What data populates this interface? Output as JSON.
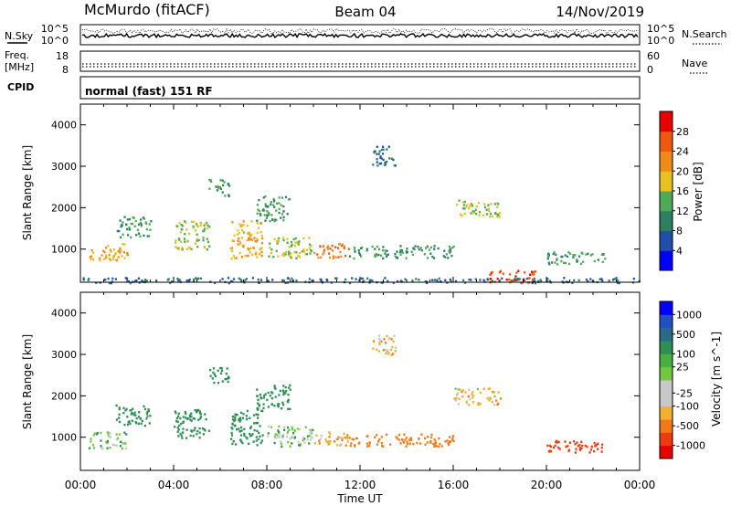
{
  "header": {
    "station": "McMurdo (fitACF)",
    "beam": "Beam 04",
    "date": "14/Nov/2019"
  },
  "noise_panel": {
    "left_label": "N.Sky",
    "left_ticks": [
      "10^5",
      "10^0"
    ],
    "right_label": "N.Search",
    "right_ticks": [
      "10^5",
      "10^0"
    ]
  },
  "freq_panel": {
    "left_label_1": "Freq.",
    "left_label_2": "[MHz]",
    "left_ticks": [
      "18",
      "8"
    ],
    "right_label": "Nave",
    "right_ticks": [
      "60",
      "0"
    ]
  },
  "cpid": {
    "label": "CPID",
    "value": "normal (fast) 151 RF"
  },
  "colors": {
    "power_scale": [
      "#0000ff",
      "#1f4fa8",
      "#2e7f62",
      "#4faa55",
      "#e8c020",
      "#f08a18",
      "#ec5a10",
      "#e80000"
    ],
    "velocity_scale": [
      "#e80000",
      "#ee3a10",
      "#f07a18",
      "#f2b030",
      "#c8c8c8",
      "#c8c8c8",
      "#70c840",
      "#48b040",
      "#2e8f55",
      "#2a6a88",
      "#2050c0",
      "#0000ff"
    ]
  },
  "chart_data": [
    {
      "type": "heatmap",
      "panel": "power",
      "ylabel": "Slant Range [km]",
      "yticks": [
        "1000",
        "2000",
        "3000",
        "4000"
      ],
      "ylim": [
        200,
        4500
      ],
      "xlim_hours": [
        0,
        24
      ],
      "colorbar_label": "Power [dB]",
      "colorbar_ticks": [
        "4",
        "8",
        "12",
        "16",
        "20",
        "24",
        "28"
      ],
      "color_range": [
        0,
        32
      ],
      "features": [
        {
          "t0": 0.0,
          "t1": 24.0,
          "r0": 200,
          "r1": 330,
          "value": 8
        },
        {
          "t0": 0.3,
          "t1": 2.0,
          "r0": 750,
          "r1": 1150,
          "value": 20
        },
        {
          "t0": 1.5,
          "t1": 3.0,
          "r0": 1300,
          "r1": 1800,
          "value": 12
        },
        {
          "t0": 4.0,
          "t1": 5.5,
          "r0": 1000,
          "r1": 1700,
          "value": 16
        },
        {
          "t0": 5.5,
          "t1": 6.4,
          "r0": 2300,
          "r1": 2700,
          "value": 12
        },
        {
          "t0": 6.4,
          "t1": 7.8,
          "r0": 800,
          "r1": 1700,
          "value": 20
        },
        {
          "t0": 7.5,
          "t1": 9.0,
          "r0": 1700,
          "r1": 2300,
          "value": 12
        },
        {
          "t0": 8.0,
          "t1": 10.0,
          "r0": 800,
          "r1": 1300,
          "value": 16
        },
        {
          "t0": 10.0,
          "t1": 11.5,
          "r0": 800,
          "r1": 1150,
          "value": 24
        },
        {
          "t0": 11.5,
          "t1": 16.0,
          "r0": 800,
          "r1": 1100,
          "value": 12
        },
        {
          "t0": 12.5,
          "t1": 13.5,
          "r0": 3000,
          "r1": 3500,
          "value": 8
        },
        {
          "t0": 16.0,
          "t1": 18.0,
          "r0": 1800,
          "r1": 2200,
          "value": 16
        },
        {
          "t0": 17.5,
          "t1": 19.5,
          "r0": 200,
          "r1": 500,
          "value": 28
        },
        {
          "t0": 20.0,
          "t1": 22.5,
          "r0": 650,
          "r1": 950,
          "value": 12
        }
      ]
    },
    {
      "type": "heatmap",
      "panel": "velocity",
      "ylabel": "Slant Range [km]",
      "yticks": [
        "1000",
        "2000",
        "3000",
        "4000"
      ],
      "ylim": [
        200,
        4500
      ],
      "xlim_hours": [
        0,
        24
      ],
      "xticks": [
        "00:00",
        "04:00",
        "08:00",
        "12:00",
        "16:00",
        "20:00",
        "00:00"
      ],
      "xlabel": "Time UT",
      "colorbar_label": "Velocity [m s^-1]",
      "colorbar_ticks": [
        "1000",
        "500",
        "100",
        "25",
        "-25",
        "-100",
        "-500",
        "-1000"
      ],
      "color_range": [
        -1200,
        1200
      ],
      "features": [
        {
          "t0": 0.3,
          "t1": 2.0,
          "r0": 750,
          "r1": 1150,
          "value": 60
        },
        {
          "t0": 1.5,
          "t1": 3.0,
          "r0": 1300,
          "r1": 1800,
          "value": 200
        },
        {
          "t0": 4.0,
          "t1": 5.5,
          "r0": 1000,
          "r1": 1700,
          "value": 300
        },
        {
          "t0": 5.5,
          "t1": 6.4,
          "r0": 2300,
          "r1": 2700,
          "value": 300
        },
        {
          "t0": 6.4,
          "t1": 7.8,
          "r0": 800,
          "r1": 1700,
          "value": 200
        },
        {
          "t0": 7.5,
          "t1": 9.0,
          "r0": 1700,
          "r1": 2300,
          "value": 300
        },
        {
          "t0": 8.0,
          "t1": 10.0,
          "r0": 800,
          "r1": 1300,
          "value": 60
        },
        {
          "t0": 10.0,
          "t1": 11.5,
          "r0": 800,
          "r1": 1150,
          "value": -60
        },
        {
          "t0": 11.5,
          "t1": 16.0,
          "r0": 800,
          "r1": 1100,
          "value": -200
        },
        {
          "t0": 12.5,
          "t1": 13.5,
          "r0": 3000,
          "r1": 3500,
          "value": -60
        },
        {
          "t0": 16.0,
          "t1": 18.0,
          "r0": 1800,
          "r1": 2200,
          "value": -40
        },
        {
          "t0": 20.0,
          "t1": 22.5,
          "r0": 650,
          "r1": 950,
          "value": -600
        }
      ]
    }
  ]
}
